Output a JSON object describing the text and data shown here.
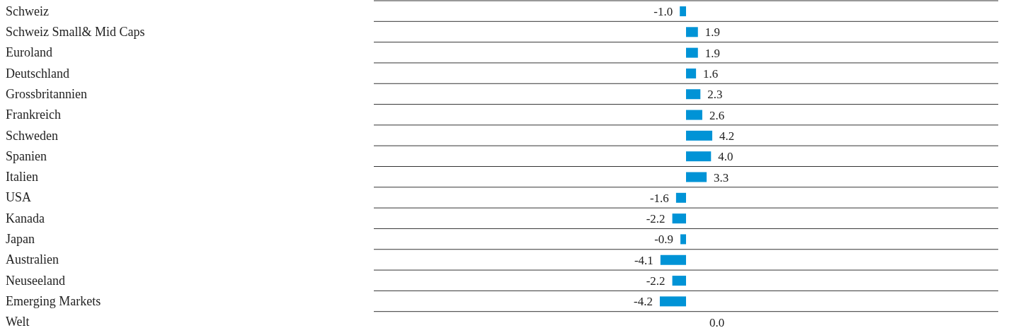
{
  "chart_data": {
    "type": "bar",
    "orientation": "horizontal",
    "categories": [
      "Schweiz",
      "Schweiz Small& Mid Caps",
      "Euroland",
      "Deutschland",
      "Grossbritannien",
      "Frankreich",
      "Schweden",
      "Spanien",
      "Italien",
      "USA",
      "Kanada",
      "Japan",
      "Australien",
      "Neuseeland",
      "Emerging Markets",
      "Welt"
    ],
    "values": [
      -1.0,
      1.9,
      1.9,
      1.6,
      2.3,
      2.6,
      4.2,
      4.0,
      3.3,
      -1.6,
      -2.2,
      -0.9,
      -4.1,
      -2.2,
      -4.2,
      0.0
    ],
    "value_labels": [
      "-1.0",
      "1.9",
      "1.9",
      "1.6",
      "2.3",
      "2.6",
      "4.2",
      "4.0",
      "3.3",
      "-1.6",
      "-2.2",
      "-0.9",
      "-4.1",
      "-2.2",
      "-4.2",
      "0.0"
    ],
    "color": "#0093d6",
    "xlim": [
      -50,
      50
    ],
    "tick_labels": "y",
    "grid": "y"
  }
}
